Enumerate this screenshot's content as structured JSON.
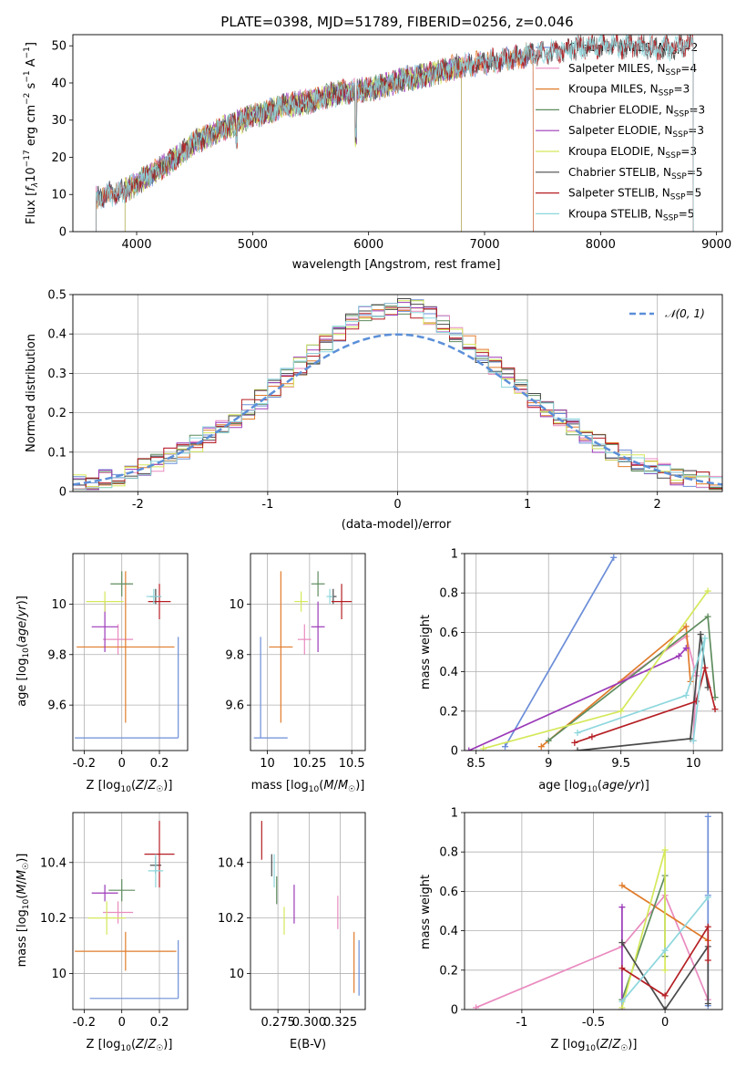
{
  "title": "PLATE=0398, MJD=51789, FIBERID=0256, z=0.046",
  "chart_data": [
    {
      "type": "line",
      "id": "spectrum",
      "xlabel": "wavelength [Angstrom, rest frame]",
      "ylabel": "Flux [f_λ10^-17 erg cm^-2 s^-1 A^-1]",
      "xlim": [
        3450,
        9050
      ],
      "ylim": [
        0,
        53
      ],
      "xticks": [
        4000,
        5000,
        6000,
        7000,
        8000,
        9000
      ],
      "yticks": [
        0,
        10,
        20,
        30,
        40,
        50
      ],
      "grid": false,
      "legend_position": "right",
      "continuum_x": [
        3650,
        3750,
        3900,
        4000,
        4100,
        4300,
        4500,
        4700,
        4900,
        5100,
        5300,
        5500,
        5700,
        5900,
        6100,
        6300,
        6500,
        6700,
        6900,
        7100,
        7300,
        7500,
        7700,
        7900,
        8100,
        8300,
        8500,
        8700,
        8800
      ],
      "continuum_y": [
        9,
        10,
        11,
        13,
        15,
        19,
        24,
        27,
        30,
        32,
        34,
        35,
        37,
        38,
        39,
        41,
        42,
        44,
        45,
        46,
        47,
        48,
        49,
        50,
        50,
        50,
        49,
        50,
        51
      ],
      "series": [
        {
          "name": "Chabrier MILES, N_SSP=2",
          "label_text": "Chabrier MILES, N",
          "label_sub": "SSP",
          "label_tail": "=2",
          "color": "#6c8ed8",
          "x_range": [
            3650,
            7420
          ]
        },
        {
          "name": "Salpeter MILES, N_SSP=4",
          "label_text": "Salpeter MILES, N",
          "label_sub": "SSP",
          "label_tail": "=4",
          "color": "#e98bbf",
          "x_range": [
            3650,
            7420
          ]
        },
        {
          "name": "Kroupa MILES, N_SSP=3",
          "label_text": "Kroupa MILES, N",
          "label_sub": "SSP",
          "label_tail": "=3",
          "color": "#e07b2a",
          "x_range": [
            3650,
            7420
          ]
        },
        {
          "name": "Chabrier ELODIE, N_SSP=3",
          "label_text": "Chabrier ELODIE, N",
          "label_sub": "SSP",
          "label_tail": "=3",
          "color": "#5e8c5e",
          "x_range": [
            3900,
            6800
          ]
        },
        {
          "name": "Salpeter ELODIE, N_SSP=3",
          "label_text": "Salpeter ELODIE, N",
          "label_sub": "SSP",
          "label_tail": "=3",
          "color": "#9b3ab8",
          "x_range": [
            3900,
            6800
          ]
        },
        {
          "name": "Kroupa ELODIE, N_SSP=3",
          "label_text": "Kroupa ELODIE, N",
          "label_sub": "SSP",
          "label_tail": "=3",
          "color": "#d5e85a",
          "x_range": [
            3900,
            6800
          ]
        },
        {
          "name": "Chabrier STELIB, N_SSP=5",
          "label_text": "Chabrier STELIB, N",
          "label_sub": "SSP",
          "label_tail": "=5",
          "color": "#4a4a4a",
          "x_range": [
            3650,
            8800
          ]
        },
        {
          "name": "Salpeter STELIB, N_SSP=5",
          "label_text": "Salpeter STELIB, N",
          "label_sub": "SSP",
          "label_tail": "=5",
          "color": "#b51f24",
          "x_range": [
            3650,
            8800
          ]
        },
        {
          "name": "Kroupa STELIB, N_SSP=5",
          "label_text": "Kroupa STELIB, N",
          "label_sub": "SSP",
          "label_tail": "=5",
          "color": "#8dd7dd",
          "x_range": [
            3650,
            8800
          ]
        }
      ]
    },
    {
      "type": "step-histogram",
      "id": "residuals",
      "xlabel": "(data-model)/error",
      "ylabel": "Normed distribution",
      "xlim": [
        -2.5,
        2.5
      ],
      "ylim": [
        0,
        0.5
      ],
      "xticks": [
        -2,
        -1,
        0,
        1,
        2
      ],
      "yticks": [
        0.0,
        0.1,
        0.2,
        0.3,
        0.4,
        0.5
      ],
      "grid": true,
      "bin_width": 0.1,
      "reference_curve": {
        "name": "N(0,1)",
        "mean": 0,
        "sigma": 1,
        "color": "#5b8fd8"
      }
    },
    {
      "type": "errorbar",
      "id": "age-vs-z",
      "xlabel": "Z [log10(Z/Z☉)]",
      "ylabel": "age [log10(age/yr)]",
      "xlim": [
        -0.26,
        0.35
      ],
      "ylim": [
        9.42,
        10.2
      ],
      "xticks": [
        -0.2,
        0.0,
        0.2
      ],
      "yticks": [
        9.6,
        9.8,
        10.0
      ],
      "grid": true,
      "points": [
        {
          "color": "#6c8ed8",
          "x": 0.3,
          "y": 9.47,
          "xerr_lo": 0.55,
          "xerr_hi": 0,
          "yerr_lo": 0,
          "yerr_hi": 0.4
        },
        {
          "color": "#e98bbf",
          "x": -0.02,
          "y": 9.86,
          "xerr": 0.08,
          "yerr": 0.06
        },
        {
          "color": "#e07b2a",
          "x": 0.02,
          "y": 9.83,
          "xerr": 0.26,
          "yerr": 0.3
        },
        {
          "color": "#5e8c5e",
          "x": 0.0,
          "y": 10.08,
          "xerr": 0.06,
          "yerr": 0.05
        },
        {
          "color": "#9b3ab8",
          "x": -0.09,
          "y": 9.91,
          "xerr": 0.07,
          "yerr": 0.1
        },
        {
          "color": "#d5e85a",
          "x": -0.09,
          "y": 10.01,
          "xerr": 0.1,
          "yerr": 0.04
        },
        {
          "color": "#4a4a4a",
          "x": 0.18,
          "y": 10.03,
          "xerr": 0.03,
          "yerr": 0.03
        },
        {
          "color": "#b51f24",
          "x": 0.2,
          "y": 10.01,
          "xerr": 0.06,
          "yerr": 0.07
        },
        {
          "color": "#8dd7dd",
          "x": 0.17,
          "y": 10.03,
          "xerr": 0.04,
          "yerr": 0.03
        }
      ]
    },
    {
      "type": "errorbar",
      "id": "age-vs-mass",
      "xlabel": "mass [log10(M/M☉)]",
      "ylabel": "",
      "xlim": [
        9.9,
        10.58
      ],
      "ylim": [
        9.42,
        10.2
      ],
      "xticks": [
        10.0,
        10.25,
        10.5
      ],
      "yticks": [
        9.6,
        9.8,
        10.0
      ],
      "grid": true,
      "points": [
        {
          "color": "#6c8ed8",
          "x": 9.96,
          "y": 9.47,
          "xerr_lo": 0.04,
          "xerr_hi": 0.16,
          "yerr_lo": 0,
          "yerr_hi": 0.4
        },
        {
          "color": "#e98bbf",
          "x": 10.22,
          "y": 9.86,
          "xerr": 0.04,
          "yerr": 0.06
        },
        {
          "color": "#e07b2a",
          "x": 10.08,
          "y": 9.83,
          "xerr": 0.07,
          "yerr": 0.3
        },
        {
          "color": "#5e8c5e",
          "x": 10.3,
          "y": 10.08,
          "xerr": 0.04,
          "yerr": 0.05
        },
        {
          "color": "#9b3ab8",
          "x": 10.3,
          "y": 9.91,
          "xerr": 0.04,
          "yerr": 0.1
        },
        {
          "color": "#d5e85a",
          "x": 10.2,
          "y": 10.01,
          "xerr": 0.04,
          "yerr": 0.04
        },
        {
          "color": "#4a4a4a",
          "x": 10.39,
          "y": 10.03,
          "xerr": 0.02,
          "yerr": 0.03
        },
        {
          "color": "#b51f24",
          "x": 10.44,
          "y": 10.01,
          "xerr": 0.06,
          "yerr": 0.07
        },
        {
          "color": "#8dd7dd",
          "x": 10.37,
          "y": 10.03,
          "xerr": 0.02,
          "yerr": 0.03
        }
      ]
    },
    {
      "type": "line",
      "id": "weight-vs-age",
      "xlabel": "age [log10(age/yr)]",
      "ylabel": "mass weight",
      "xlim": [
        8.42,
        10.2
      ],
      "ylim": [
        0,
        1
      ],
      "xticks": [
        8.5,
        9.0,
        9.5,
        10.0
      ],
      "yticks": [
        0.0,
        0.2,
        0.4,
        0.6,
        0.8,
        1.0
      ],
      "grid": true,
      "series": [
        {
          "color": "#6c8ed8",
          "x": [
            8.7,
            9.45
          ],
          "y": [
            0.02,
            0.98
          ]
        },
        {
          "color": "#e98bbf",
          "x": [
            9.5,
            9.95,
            10.02,
            10.0
          ],
          "y": [
            0.35,
            0.58,
            0.38,
            0.05
          ]
        },
        {
          "color": "#e07b2a",
          "x": [
            8.95,
            9.95,
            9.98
          ],
          "y": [
            0.02,
            0.63,
            0.35
          ]
        },
        {
          "color": "#5e8c5e",
          "x": [
            9.0,
            10.1,
            10.15
          ],
          "y": [
            0.05,
            0.68,
            0.27
          ]
        },
        {
          "color": "#9b3ab8",
          "x": [
            8.45,
            9.9,
            9.95
          ],
          "y": [
            0.0,
            0.48,
            0.52
          ]
        },
        {
          "color": "#d5e85a",
          "x": [
            8.55,
            9.5,
            10.1
          ],
          "y": [
            0.01,
            0.2,
            0.81
          ]
        },
        {
          "color": "#4a4a4a",
          "x": [
            9.2,
            9.98,
            10.05,
            10.1
          ],
          "y": [
            0.0,
            0.06,
            0.59,
            0.32
          ]
        },
        {
          "color": "#b51f24",
          "x": [
            9.18,
            9.3,
            10.02,
            10.08,
            10.15
          ],
          "y": [
            0.04,
            0.07,
            0.25,
            0.42,
            0.21
          ]
        },
        {
          "color": "#8dd7dd",
          "x": [
            9.2,
            9.95,
            10.08,
            10.0
          ],
          "y": [
            0.09,
            0.28,
            0.57,
            0.05
          ]
        }
      ]
    },
    {
      "type": "errorbar",
      "id": "mass-vs-z",
      "xlabel": "Z [log10(Z/Z☉)]",
      "ylabel": "mass [log10(M/M☉)]",
      "xlim": [
        -0.26,
        0.35
      ],
      "ylim": [
        9.87,
        10.58
      ],
      "xticks": [
        -0.2,
        0.0,
        0.2
      ],
      "yticks": [
        10.0,
        10.2,
        10.4
      ],
      "grid": true,
      "points": [
        {
          "color": "#6c8ed8",
          "x": 0.3,
          "y": 9.91,
          "xerr_lo": 0.47,
          "xerr_hi": 0,
          "yerr_lo": 0,
          "yerr_hi": 0.21
        },
        {
          "color": "#e98bbf",
          "x": -0.02,
          "y": 10.22,
          "xerr": 0.08,
          "yerr": 0.04
        },
        {
          "color": "#e07b2a",
          "x": 0.02,
          "y": 10.08,
          "xerr": 0.27,
          "yerr": 0.07
        },
        {
          "color": "#5e8c5e",
          "x": 0.0,
          "y": 10.3,
          "xerr": 0.07,
          "yerr": 0.04
        },
        {
          "color": "#9b3ab8",
          "x": -0.09,
          "y": 10.29,
          "xerr": 0.07,
          "yerr": 0.03
        },
        {
          "color": "#d5e85a",
          "x": -0.08,
          "y": 10.2,
          "xerr": 0.1,
          "yerr": 0.06
        },
        {
          "color": "#4a4a4a",
          "x": 0.18,
          "y": 10.39,
          "xerr": 0.03,
          "yerr": 0.03
        },
        {
          "color": "#b51f24",
          "x": 0.2,
          "y": 10.43,
          "xerr": 0.08,
          "yerr": 0.12
        },
        {
          "color": "#8dd7dd",
          "x": 0.18,
          "y": 10.37,
          "xerr": 0.04,
          "yerr": 0.06
        }
      ]
    },
    {
      "type": "errorbar",
      "id": "mass-vs-ebv",
      "xlabel": "E(B-V)",
      "ylabel": "",
      "xlim": [
        0.253,
        0.345
      ],
      "ylim": [
        9.87,
        10.58
      ],
      "xticks": [
        0.275,
        0.3,
        0.325
      ],
      "xticklabels": [
        "0.275",
        "0.300",
        "0.325"
      ],
      "yticks": [
        10.0,
        10.2,
        10.4
      ],
      "grid": true,
      "points": [
        {
          "color": "#b51f24",
          "x": 0.262,
          "y": 10.48,
          "yerr": 0.07
        },
        {
          "color": "#4a4a4a",
          "x": 0.27,
          "y": 10.39,
          "yerr": 0.04
        },
        {
          "color": "#8dd7dd",
          "x": 0.272,
          "y": 10.37,
          "yerr": 0.06
        },
        {
          "color": "#5e8c5e",
          "x": 0.274,
          "y": 10.3,
          "yerr": 0.05
        },
        {
          "color": "#d5e85a",
          "x": 0.28,
          "y": 10.19,
          "yerr": 0.05
        },
        {
          "color": "#9b3ab8",
          "x": 0.288,
          "y": 10.25,
          "yerr": 0.07
        },
        {
          "color": "#e98bbf",
          "x": 0.323,
          "y": 10.22,
          "yerr": 0.06
        },
        {
          "color": "#e07b2a",
          "x": 0.336,
          "y": 10.04,
          "yerr": 0.11
        },
        {
          "color": "#6c8ed8",
          "x": 0.34,
          "y": 10.02,
          "yerr": 0.1
        }
      ]
    },
    {
      "type": "line",
      "id": "weight-vs-z",
      "xlabel": "Z [log10(Z/Z☉)]",
      "ylabel": "mass weight",
      "xlim": [
        -1.4,
        0.4
      ],
      "ylim": [
        0,
        1
      ],
      "xticks": [
        -1.0,
        -0.5,
        0.0
      ],
      "yticks": [
        0.0,
        0.2,
        0.4,
        0.6,
        0.8,
        1.0
      ],
      "grid": true,
      "series": [
        {
          "color": "#6c8ed8",
          "x": [
            0.3,
            0.3,
            0.3
          ],
          "y": [
            0.02,
            0.58,
            0.98
          ]
        },
        {
          "color": "#e98bbf",
          "x": [
            -1.32,
            -0.3,
            0.0,
            0.3
          ],
          "y": [
            0.01,
            0.32,
            0.58,
            0.05
          ]
        },
        {
          "color": "#e07b2a",
          "x": [
            -0.3,
            0.3
          ],
          "y": [
            0.63,
            0.35
          ]
        },
        {
          "color": "#5e8c5e",
          "x": [
            -0.3,
            0.0,
            0.0
          ],
          "y": [
            0.05,
            0.68,
            0.27
          ]
        },
        {
          "color": "#9b3ab8",
          "x": [
            -0.3,
            -0.3
          ],
          "y": [
            0.0,
            0.52
          ]
        },
        {
          "color": "#d5e85a",
          "x": [
            -0.3,
            0.0,
            0.0
          ],
          "y": [
            0.01,
            0.81,
            0.2
          ]
        },
        {
          "color": "#4a4a4a",
          "x": [
            -0.3,
            0.0,
            0.3,
            0.3
          ],
          "y": [
            0.34,
            0.0,
            0.32,
            0.03
          ]
        },
        {
          "color": "#b51f24",
          "x": [
            -0.3,
            0.0,
            0.3,
            0.3
          ],
          "y": [
            0.21,
            0.07,
            0.42,
            0.25
          ]
        },
        {
          "color": "#8dd7dd",
          "x": [
            -0.3,
            0.0,
            0.3
          ],
          "y": [
            0.04,
            0.3,
            0.57
          ]
        }
      ]
    }
  ]
}
